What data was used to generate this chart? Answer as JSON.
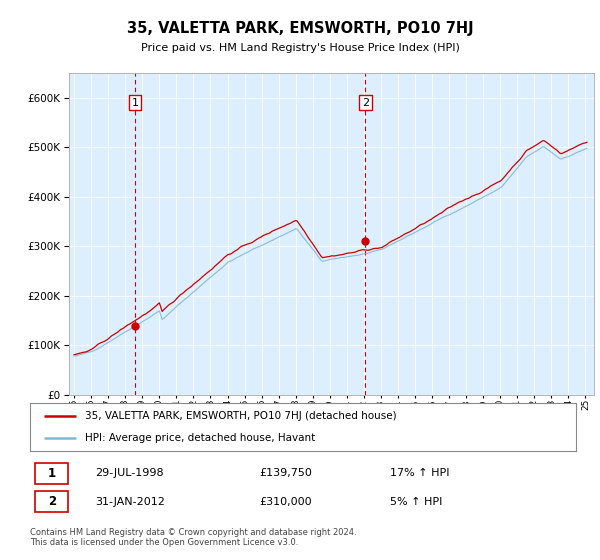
{
  "title": "35, VALETTA PARK, EMSWORTH, PO10 7HJ",
  "subtitle": "Price paid vs. HM Land Registry's House Price Index (HPI)",
  "legend_line1": "35, VALETTA PARK, EMSWORTH, PO10 7HJ (detached house)",
  "legend_line2": "HPI: Average price, detached house, Havant",
  "sale1_date": "29-JUL-1998",
  "sale1_price": "£139,750",
  "sale1_hpi": "17% ↑ HPI",
  "sale2_date": "31-JAN-2012",
  "sale2_price": "£310,000",
  "sale2_hpi": "5% ↑ HPI",
  "footer": "Contains HM Land Registry data © Crown copyright and database right 2024.\nThis data is licensed under the Open Government Licence v3.0.",
  "red_color": "#cc0000",
  "blue_color": "#7eb8d4",
  "bg_color": "#ddeeff",
  "sale1_x": 1998.57,
  "sale1_y": 139750,
  "sale2_x": 2012.08,
  "sale2_y": 310000,
  "xlim_left": 1994.7,
  "xlim_right": 2025.5,
  "ylim": [
    0,
    650000
  ],
  "yticks": [
    0,
    100000,
    200000,
    300000,
    400000,
    500000,
    600000
  ],
  "xtick_start": 1995,
  "xtick_end": 2025
}
